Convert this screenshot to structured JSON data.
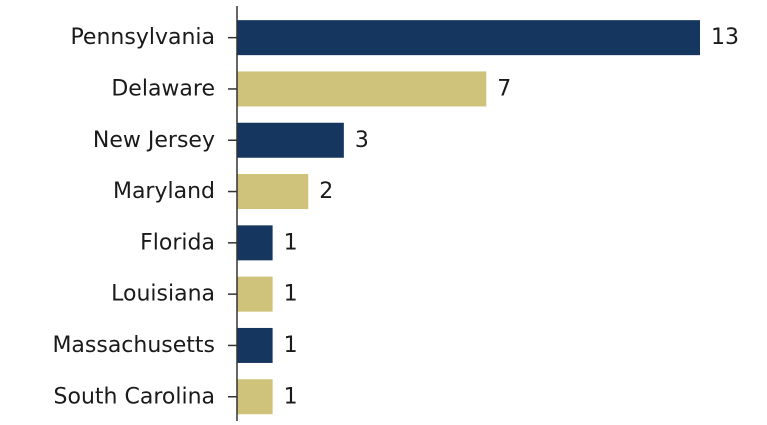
{
  "chart_data": {
    "type": "bar",
    "orientation": "horizontal",
    "title": "",
    "xlabel": "",
    "ylabel": "",
    "categories": [
      "Pennsylvania",
      "Delaware",
      "New Jersey",
      "Maryland",
      "Florida",
      "Louisiana",
      "Massachusetts",
      "South Carolina"
    ],
    "values": [
      13,
      7,
      3,
      2,
      1,
      1,
      1,
      1
    ],
    "xlim": [
      0,
      13
    ],
    "colors": [
      "#14365f",
      "#cfc27a"
    ],
    "grid": false,
    "legend": "none",
    "data_labels": true
  }
}
